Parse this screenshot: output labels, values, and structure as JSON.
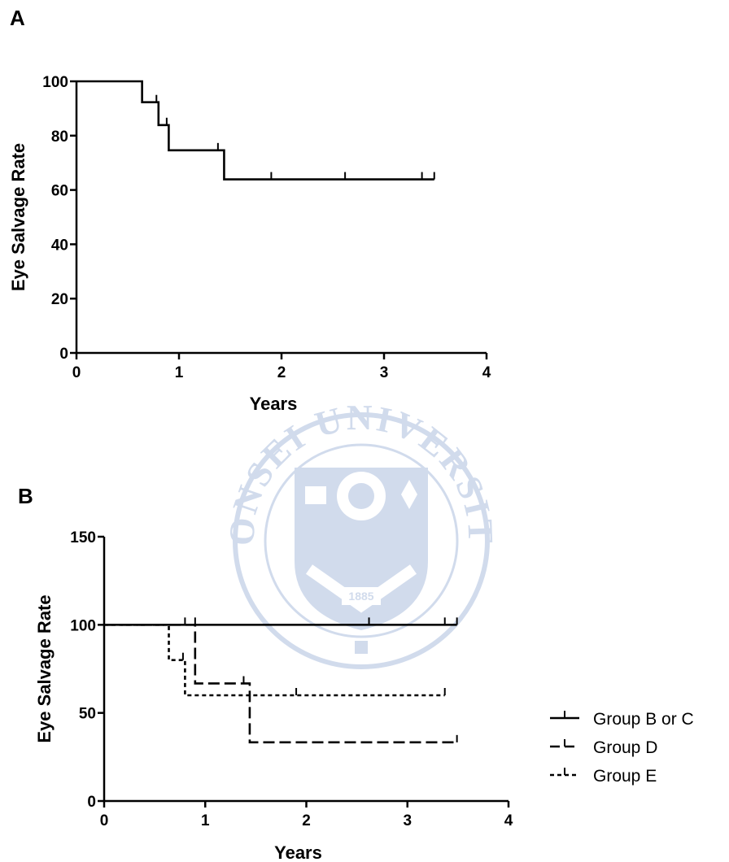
{
  "chart_data": [
    {
      "panel": "A",
      "type": "line",
      "step": true,
      "xlabel": "Years",
      "ylabel": "Eye Salvage Rate",
      "xlim": [
        0,
        4
      ],
      "ylim": [
        0,
        100
      ],
      "xticks": [
        0,
        1,
        2,
        3,
        4
      ],
      "yticks": [
        0,
        20,
        40,
        60,
        80,
        100
      ],
      "series": [
        {
          "style": "solid",
          "x": [
            0,
            0.64,
            0.8,
            0.9,
            1.44,
            3.49
          ],
          "y": [
            100,
            92.3,
            83.9,
            74.6,
            63.9,
            63.9
          ],
          "censored": [
            {
              "x": 0.78,
              "y": 92.3
            },
            {
              "x": 0.88,
              "y": 83.9
            },
            {
              "x": 1.38,
              "y": 74.6
            },
            {
              "x": 1.9,
              "y": 63.9
            },
            {
              "x": 2.62,
              "y": 63.9
            },
            {
              "x": 3.37,
              "y": 63.9
            },
            {
              "x": 3.49,
              "y": 63.9
            }
          ]
        }
      ]
    },
    {
      "panel": "B",
      "type": "line",
      "step": true,
      "xlabel": "Years",
      "ylabel": "Eye Salvage Rate",
      "xlim": [
        0,
        4
      ],
      "ylim": [
        0,
        150
      ],
      "xticks": [
        0,
        1,
        2,
        3,
        4
      ],
      "yticks": [
        0,
        50,
        100,
        150
      ],
      "legend_position": "right",
      "series": [
        {
          "name": "Group B or C",
          "style": "solid",
          "x": [
            0,
            3.49
          ],
          "y": [
            100,
            100
          ],
          "censored": [
            {
              "x": 0.8,
              "y": 100
            },
            {
              "x": 0.9,
              "y": 100
            },
            {
              "x": 2.62,
              "y": 100
            },
            {
              "x": 3.37,
              "y": 100
            },
            {
              "x": 3.49,
              "y": 100
            }
          ]
        },
        {
          "name": "Group D",
          "style": "dashed",
          "x": [
            0,
            0.9,
            1.44,
            3.49
          ],
          "y": [
            100,
            66.7,
            33.3,
            33.3
          ],
          "censored": [
            {
              "x": 1.38,
              "y": 66.7
            },
            {
              "x": 3.49,
              "y": 33.3
            }
          ]
        },
        {
          "name": "Group E",
          "style": "dotted",
          "x": [
            0,
            0.64,
            0.8,
            3.37
          ],
          "y": [
            100,
            80,
            60,
            60
          ],
          "censored": [
            {
              "x": 0.78,
              "y": 80
            },
            {
              "x": 1.9,
              "y": 60
            },
            {
              "x": 3.37,
              "y": 60
            }
          ]
        }
      ]
    }
  ],
  "styles": {
    "solid": "",
    "dashed": "14 6",
    "dotted": "5 4"
  },
  "colors": {
    "ink": "#000000",
    "watermark": "#4a72b8"
  },
  "watermark": {
    "text": "YONSEI UNIVERSITY",
    "year": "1885"
  }
}
